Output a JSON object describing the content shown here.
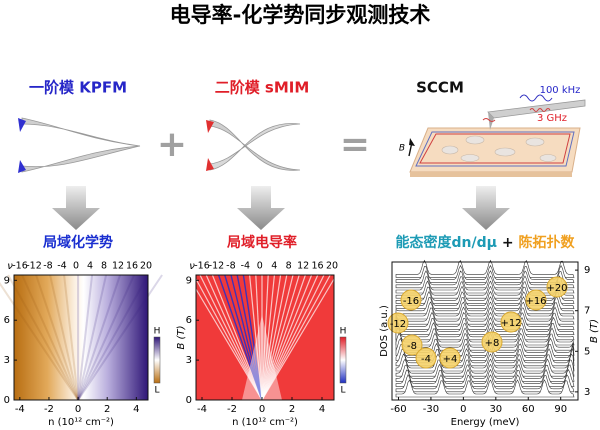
{
  "title": "电导率-化学势同步观测技术",
  "methods": [
    {
      "label": "一阶模 KPFM",
      "color": "#2626c8"
    },
    {
      "label": "二阶模 sMIM",
      "color": "#e01e28"
    },
    {
      "label": "SCCM",
      "color": "#111111"
    }
  ],
  "operators": [
    "+",
    "="
  ],
  "sccm": {
    "freq_low": "100 kHz",
    "freq_high": "3 GHz",
    "field": "B"
  },
  "panels": [
    {
      "title": [
        {
          "text": "局域化学势",
          "color": "#1a2fd0"
        }
      ],
      "nu_label": "ν",
      "nu": [
        -16,
        -12,
        -8,
        -4,
        0,
        4,
        8,
        12,
        16,
        20
      ],
      "xlabel": "n (10¹² cm⁻²)",
      "xticks": [
        -4,
        -2,
        0,
        2,
        4
      ],
      "xlim": [
        -4.4,
        4.8
      ],
      "yticks": [
        0,
        3,
        6,
        9
      ],
      "ylim": [
        0,
        9.4
      ],
      "colorbar": [
        "H",
        "L"
      ]
    },
    {
      "title": [
        {
          "text": "局域电导率",
          "color": "#e01e28"
        }
      ],
      "nu_label": "ν",
      "nu": [
        -16,
        -12,
        -8,
        -4,
        0,
        4,
        8,
        12,
        16,
        20
      ],
      "xlabel": "n (10¹² cm⁻²)",
      "xticks": [
        -4,
        -2,
        0,
        2,
        4
      ],
      "xlim": [
        -4.4,
        4.8
      ],
      "ylabel": "B (T)",
      "yticks": [
        0,
        3,
        6,
        9
      ],
      "ylim": [
        0,
        9.4
      ],
      "colorbar": [
        "H",
        "L"
      ]
    },
    {
      "title": [
        {
          "text": "能态密度dn/dμ",
          "color": "#1d9bb5"
        },
        {
          "text": " + ",
          "color": "#111111"
        },
        {
          "text": "陈拓扑数",
          "color": "#f0a020"
        }
      ],
      "xlabel": "Energy (meV)",
      "xticks": [
        -60,
        -30,
        0,
        30,
        60,
        90
      ],
      "xlim": [
        -66,
        106
      ],
      "ylabel": "DOS (a.u.)",
      "y2label": "B (T)",
      "y2ticks": [
        9,
        7,
        5,
        3
      ],
      "y2lim": [
        2.6,
        9.4
      ],
      "chern": [
        "-16",
        "-12",
        "-8",
        "-4",
        "+4",
        "+8",
        "+12",
        "+16",
        "+20"
      ]
    }
  ]
}
